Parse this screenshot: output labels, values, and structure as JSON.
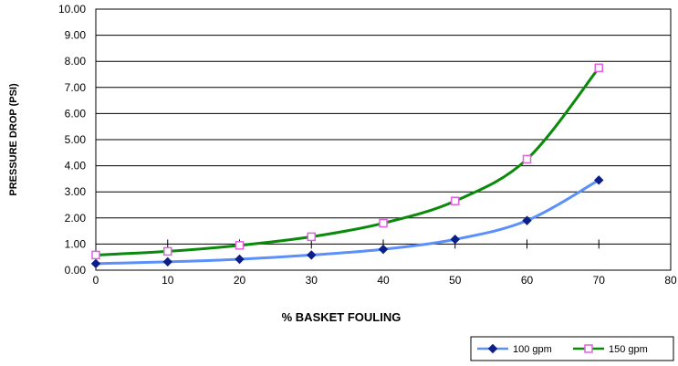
{
  "chart_data": {
    "type": "line",
    "xlabel": "% BASKET FOULING",
    "ylabel": "PRESSURE DROP (PSI)",
    "xlim": [
      0,
      80
    ],
    "ylim": [
      0,
      10
    ],
    "x_ticks": [
      "0",
      "10",
      "20",
      "30",
      "40",
      "50",
      "60",
      "70",
      "80"
    ],
    "y_ticks": [
      "0.00",
      "1.00",
      "2.00",
      "3.00",
      "4.00",
      "5.00",
      "6.00",
      "7.00",
      "8.00",
      "9.00",
      "10.00"
    ],
    "grid": "horizontal",
    "legend_position": "bottom-right",
    "series": [
      {
        "name": "100 gpm",
        "line_color": "#5b8ff9",
        "marker": "diamond",
        "marker_color": "#0b1f8a",
        "x": [
          0,
          10,
          20,
          30,
          40,
          50,
          60,
          70
        ],
        "values": [
          0.25,
          0.32,
          0.42,
          0.58,
          0.8,
          1.18,
          1.9,
          3.45
        ]
      },
      {
        "name": "150 gpm",
        "line_color": "#0a8a0a",
        "marker": "square-open",
        "marker_color": "#e060e0",
        "x": [
          0,
          10,
          20,
          30,
          40,
          50,
          60,
          70
        ],
        "values": [
          0.58,
          0.72,
          0.95,
          1.28,
          1.8,
          2.65,
          4.25,
          7.75
        ]
      }
    ]
  }
}
